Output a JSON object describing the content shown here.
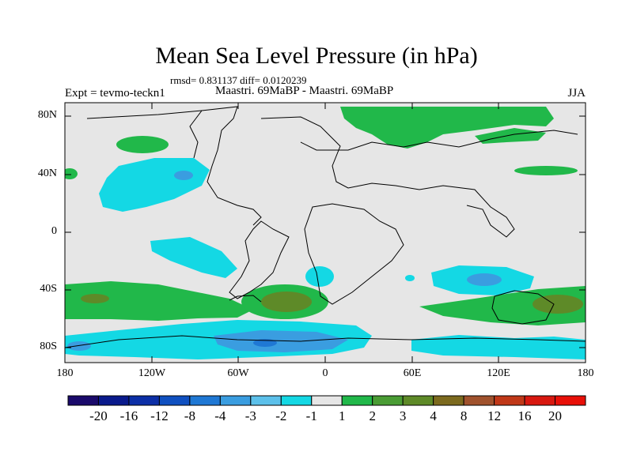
{
  "title": "Mean Sea Level Pressure (in hPa)",
  "stats": "rmsd= 0.831137 diff= 0.0120239",
  "expt": "Expt = tevmo-teckn1",
  "period": "Maastri.  69MaBP - Maastri.  69MaBP",
  "season": "JJA",
  "lat_ticks": [
    "80N",
    "40N",
    "0",
    "40S",
    "80S"
  ],
  "lon_ticks": [
    "180",
    "120W",
    "60W",
    "0",
    "60E",
    "120E",
    "180"
  ],
  "colorbar": {
    "labels": [
      "-20",
      "-16",
      "-12",
      "-8",
      "-4",
      "-3",
      "-2",
      "-1",
      "1",
      "2",
      "3",
      "4",
      "8",
      "12",
      "16",
      "20"
    ],
    "colors": [
      "#1a0a6b",
      "#0a1a8c",
      "#0c2fa6",
      "#1050c0",
      "#1f78d4",
      "#3a9de0",
      "#5cc0ea",
      "#14d8e4",
      "#e6e6e6",
      "#21b84a",
      "#4a9c34",
      "#5e8a28",
      "#7c6a1e",
      "#a0522d",
      "#c03818",
      "#d81810",
      "#e81008"
    ]
  },
  "chart_data": {
    "type": "filled-contour-map",
    "variable": "Mean Sea Level Pressure difference",
    "units": "hPa",
    "season": "JJA",
    "lon_range": [
      -180,
      180
    ],
    "lat_range": [
      -90,
      90
    ],
    "levels": [
      -20,
      -16,
      -12,
      -8,
      -4,
      -3,
      -2,
      -1,
      1,
      2,
      3,
      4,
      8,
      12,
      16,
      20
    ]
  }
}
